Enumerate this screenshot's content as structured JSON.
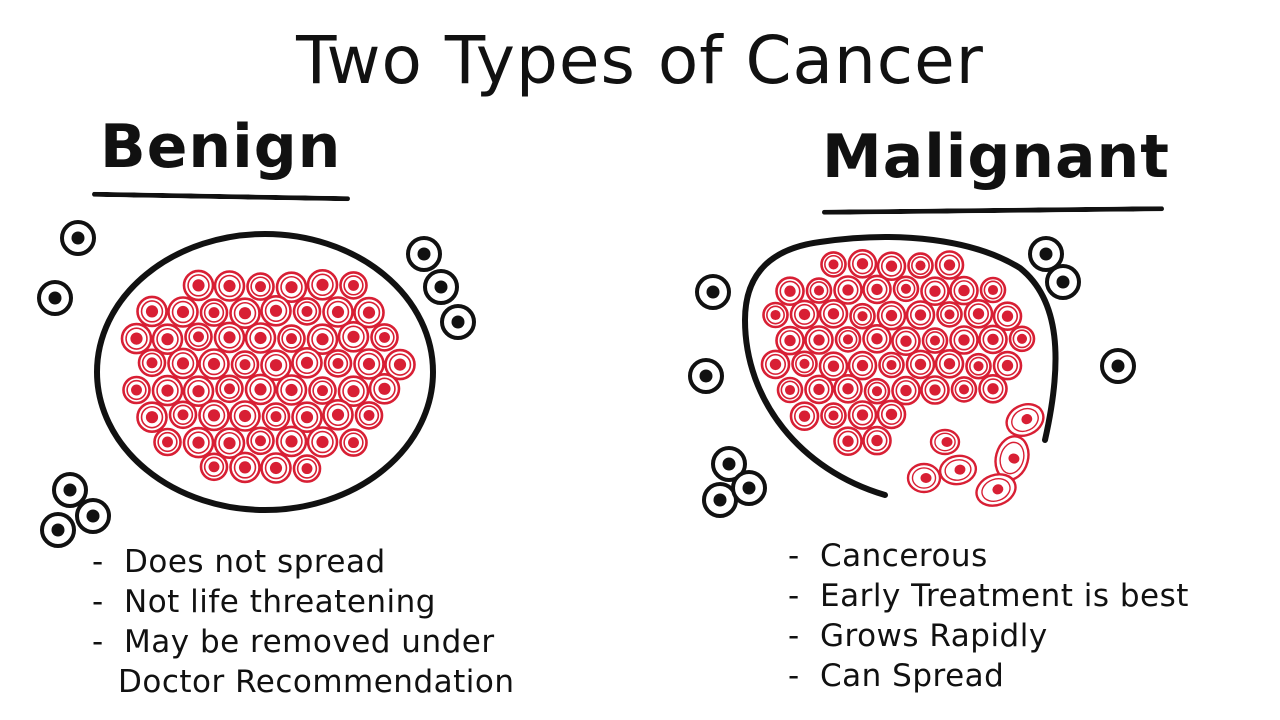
{
  "title": "Two Types of Cancer",
  "benign": {
    "heading": "Benign",
    "facts": [
      "Does not spread",
      "Not life threatening",
      "May be removed under",
      "Doctor Recommendation"
    ]
  },
  "malignant": {
    "heading": "Malignant",
    "facts": [
      "Cancerous",
      "Early Treatment is best",
      "Grows Rapidly",
      "Can Spread"
    ]
  },
  "bullet_symbol": "-",
  "colors": {
    "cancer_cell": "#d81f34",
    "normal_cell": "#111111",
    "background": "#ffffff"
  }
}
